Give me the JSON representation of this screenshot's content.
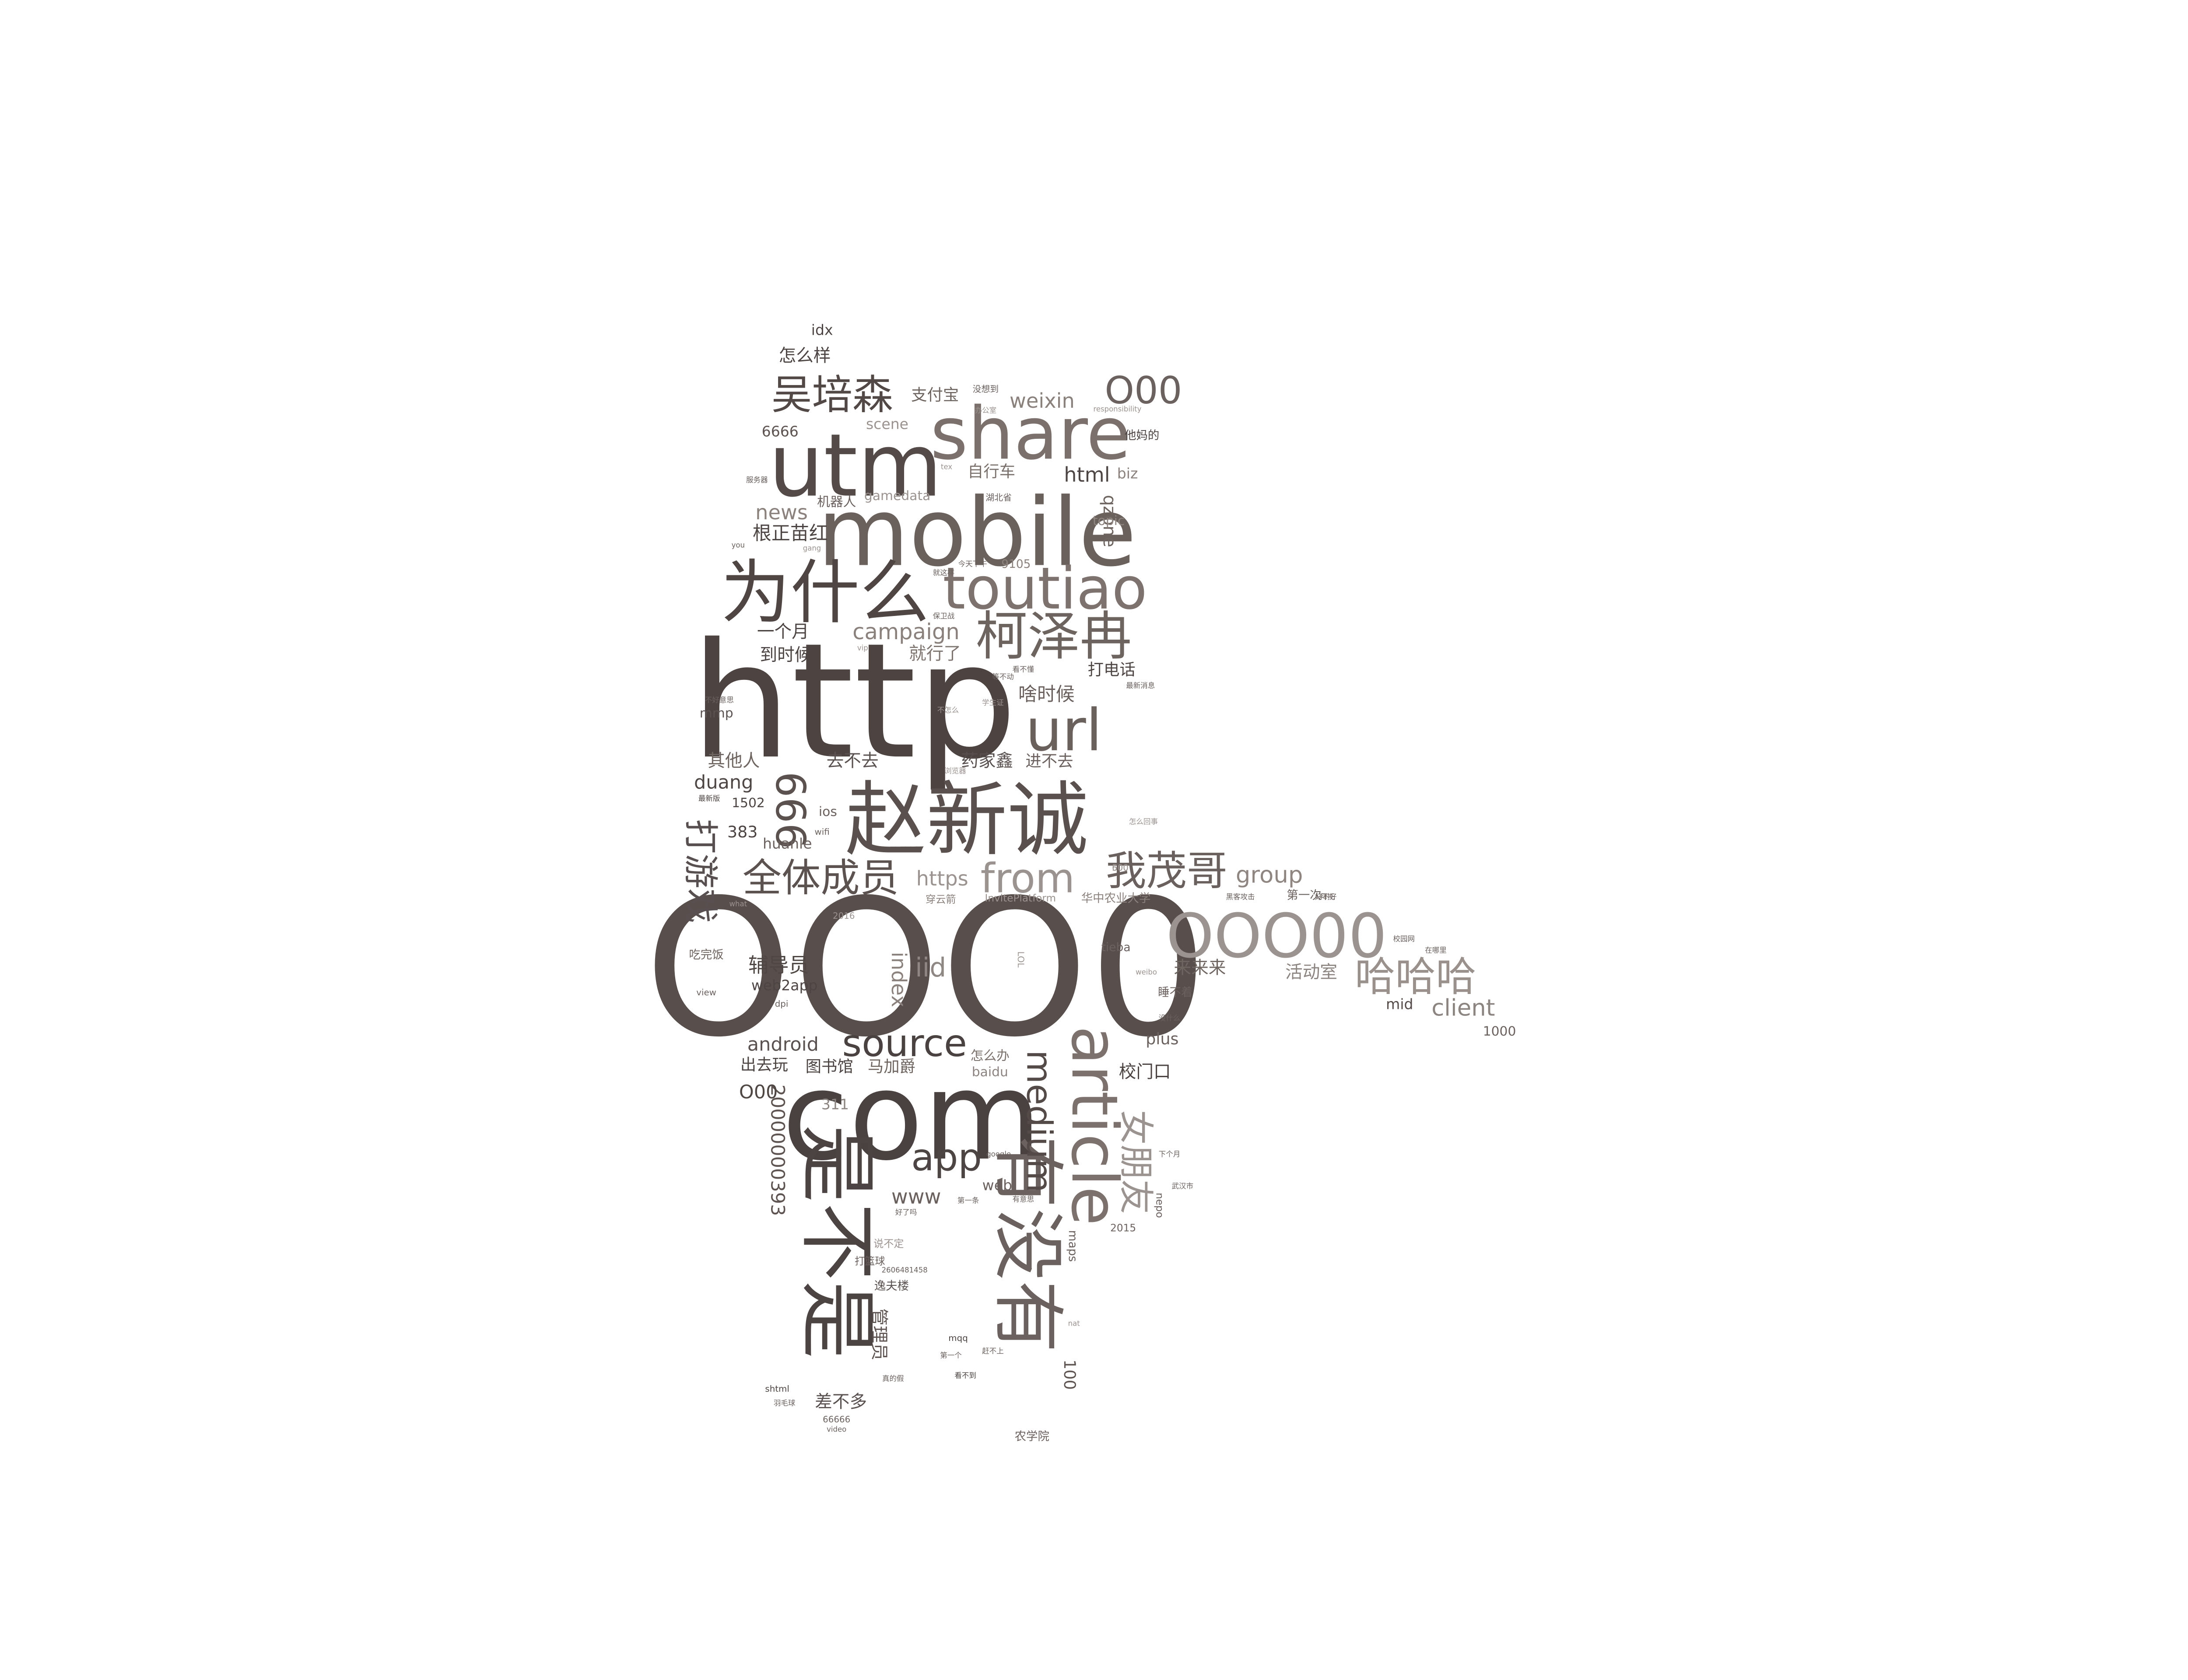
{
  "wordcloud": {
    "words": [
      {
        "text": "OOO0",
        "color": "#584f4d",
        "rotated": false
      },
      {
        "text": "http",
        "color": "#4d4442",
        "rotated": false
      },
      {
        "text": "com",
        "color": "#4a4240",
        "rotated": false
      },
      {
        "text": "mobile",
        "color": "#6a605c",
        "rotated": false
      },
      {
        "text": "utm",
        "color": "#544b49",
        "rotated": false
      },
      {
        "text": "share",
        "color": "#7b706b",
        "rotated": false
      },
      {
        "text": "赵新诚",
        "color": "#5a514e",
        "rotated": false
      },
      {
        "text": "为什么",
        "color": "#4f4644",
        "rotated": false
      },
      {
        "text": "toutiao",
        "color": "#7d726e",
        "rotated": false
      },
      {
        "text": "有没有",
        "color": "#6b615e",
        "rotated": true
      },
      {
        "text": "是不是",
        "color": "#4c4442",
        "rotated": true
      },
      {
        "text": "article",
        "color": "#7c716d",
        "rotated": true
      },
      {
        "text": "OOO00",
        "color": "#9b9390",
        "rotated": false
      },
      {
        "text": "柯泽冉",
        "color": "#6d635f",
        "rotated": false
      },
      {
        "text": "url",
        "color": "#6a605c",
        "rotated": false
      },
      {
        "text": "吴培森",
        "color": "#524946",
        "rotated": false
      },
      {
        "text": "666",
        "color": "#5b524f",
        "rotated": true
      },
      {
        "text": "我茂哥",
        "color": "#6a615e",
        "rotated": false
      },
      {
        "text": "全体成员",
        "color": "#5c5350",
        "rotated": false
      },
      {
        "text": "from",
        "color": "#9b9390",
        "rotated": false
      },
      {
        "text": "哈哈哈",
        "color": "#9a918d",
        "rotated": false
      },
      {
        "text": "source",
        "color": "#4a4240",
        "rotated": false
      },
      {
        "text": "app",
        "color": "#4d4543",
        "rotated": false
      },
      {
        "text": "medium",
        "color": "#544b49",
        "rotated": true
      },
      {
        "text": "女朋友",
        "color": "#9b9390",
        "rotated": true
      },
      {
        "text": "打游戏",
        "color": "#585050",
        "rotated": true
      },
      {
        "text": "O00",
        "color": "#6b625f",
        "rotated": false
      },
      {
        "text": "group",
        "color": "#8f8682",
        "rotated": false
      },
      {
        "text": "campaign",
        "color": "#8a817d",
        "rotated": false
      },
      {
        "text": "iid",
        "color": "#8f8783",
        "rotated": false
      },
      {
        "text": "client",
        "color": "#8c8480",
        "rotated": false
      },
      {
        "text": "辅导员",
        "color": "#4f4744",
        "rotated": false
      },
      {
        "text": "index",
        "color": "#8b827e",
        "rotated": true
      },
      {
        "text": "android",
        "color": "#5a5250",
        "rotated": false
      },
      {
        "text": "weixin",
        "color": "#8a817d",
        "rotated": false
      },
      {
        "text": "html",
        "color": "#4d4543",
        "rotated": false
      },
      {
        "text": "qzone",
        "color": "#6e6561",
        "rotated": true
      },
      {
        "text": "news",
        "color": "#8b827e",
        "rotated": false
      },
      {
        "text": "根正苗红",
        "color": "#4d4543",
        "rotated": false
      },
      {
        "text": "20000000393",
        "color": "#5e5552",
        "rotated": true
      },
      {
        "text": "huanle",
        "color": "#6b625f",
        "rotated": false
      },
      {
        "text": "https",
        "color": "#9b9390",
        "rotated": false
      },
      {
        "text": "www",
        "color": "#6a615e",
        "rotated": false
      },
      {
        "text": "duang",
        "color": "#4e4644",
        "rotated": false
      },
      {
        "text": "啥时候",
        "color": "#6a615e",
        "rotated": false
      },
      {
        "text": "去不去",
        "color": "#5a5250",
        "rotated": false
      },
      {
        "text": "药家鑫",
        "color": "#574f4d",
        "rotated": false
      },
      {
        "text": "进不去",
        "color": "#6b625f",
        "rotated": false
      },
      {
        "text": "其他人",
        "color": "#6e6561",
        "rotated": false
      },
      {
        "text": "就行了",
        "color": "#7e7470",
        "rotated": false
      },
      {
        "text": "打电话",
        "color": "#4c4442",
        "rotated": false
      },
      {
        "text": "一个月",
        "color": "#4d4543",
        "rotated": false
      },
      {
        "text": "到时候",
        "color": "#4c4442",
        "rotated": false
      },
      {
        "text": "怎么样",
        "color": "#4d4543",
        "rotated": false
      },
      {
        "text": "支付宝",
        "color": "#6e6561",
        "rotated": false
      },
      {
        "text": "自行车",
        "color": "#7a706c",
        "rotated": false
      },
      {
        "text": "机器人",
        "color": "#6b625f",
        "rotated": false
      },
      {
        "text": "gamedata",
        "color": "#9b9390",
        "rotated": false
      },
      {
        "text": "scene",
        "color": "#9b9390",
        "rotated": false
      },
      {
        "text": "6666",
        "color": "#5e5552",
        "rotated": false
      },
      {
        "text": "biz",
        "color": "#8b827e",
        "rotated": false
      },
      {
        "text": "topic",
        "color": "#8f8682",
        "rotated": false
      },
      {
        "text": "9105",
        "color": "#8b827e",
        "rotated": false
      },
      {
        "text": "idx",
        "color": "#4e4644",
        "rotated": false
      },
      {
        "text": "活动室",
        "color": "#8c8480",
        "rotated": false
      },
      {
        "text": "来来来",
        "color": "#6e6561",
        "rotated": false
      },
      {
        "text": "mid",
        "color": "#544b49",
        "rotated": false
      },
      {
        "text": "plus",
        "color": "#6b625f",
        "rotated": false
      },
      {
        "text": "校门口",
        "color": "#4c4442",
        "rotated": false
      },
      {
        "text": "图书馆",
        "color": "#4c4442",
        "rotated": false
      },
      {
        "text": "马加爵",
        "color": "#6e6561",
        "rotated": false
      },
      {
        "text": "出去玩",
        "color": "#4d4543",
        "rotated": false
      },
      {
        "text": "怎么办",
        "color": "#7a706c",
        "rotated": false
      },
      {
        "text": "baidu",
        "color": "#8c8480",
        "rotated": false
      },
      {
        "text": "O00",
        "color": "#4f4744",
        "rotated": false
      },
      {
        "text": "311",
        "color": "#8c8480",
        "rotated": false
      },
      {
        "text": "web",
        "color": "#6a615e",
        "rotated": false
      },
      {
        "text": "web2app",
        "color": "#4d4543",
        "rotated": false
      },
      {
        "text": "差不多",
        "color": "#5a5250",
        "rotated": false
      },
      {
        "text": "管理员",
        "color": "#5e5552",
        "rotated": true
      },
      {
        "text": "100",
        "color": "#5e5552",
        "rotated": true
      },
      {
        "text": "383",
        "color": "#4c4442",
        "rotated": false
      },
      {
        "text": "1502",
        "color": "#4d4543",
        "rotated": false
      },
      {
        "text": "ios",
        "color": "#6a615e",
        "rotated": false
      },
      {
        "text": "mmp",
        "color": "#5a5250",
        "rotated": false
      },
      {
        "text": "1000",
        "color": "#6a615e",
        "rotated": false
      },
      {
        "text": "tieba",
        "color": "#6b625f",
        "rotated": false
      },
      {
        "text": "睡不着",
        "color": "#6a615e",
        "rotated": false
      },
      {
        "text": "吃完饭",
        "color": "#6e6561",
        "rotated": false
      },
      {
        "text": "maps",
        "color": "#6a615e",
        "rotated": true
      },
      {
        "text": "2015",
        "color": "#6a615e",
        "rotated": false
      },
      {
        "text": "nepo",
        "color": "#6b625f",
        "rotated": true
      },
      {
        "text": "逸夫楼",
        "color": "#5a5250",
        "rotated": false
      },
      {
        "text": "打篮球",
        "color": "#6a615e",
        "rotated": false
      },
      {
        "text": "说不定",
        "color": "#9b9390",
        "rotated": false
      },
      {
        "text": "华中农业大学",
        "color": "#8b827e",
        "rotated": false
      },
      {
        "text": "InvitePlatform",
        "color": "#9b9390",
        "rotated": false
      },
      {
        "text": "穿云箭",
        "color": "#8b827e",
        "rotated": false
      },
      {
        "text": "第一次",
        "color": "#6a615e",
        "rotated": false
      },
      {
        "text": "LOL",
        "color": "#9b9390",
        "rotated": true
      },
      {
        "text": "wifi",
        "color": "#6a615e",
        "rotated": false
      },
      {
        "text": "view",
        "color": "#6a615e",
        "rotated": false
      },
      {
        "text": "dpi",
        "color": "#6a615e",
        "rotated": false
      },
      {
        "text": "2016",
        "color": "#9b9390",
        "rotated": false
      },
      {
        "text": "shtml",
        "color": "#4c4442",
        "rotated": false
      },
      {
        "text": "mqq",
        "color": "#4d4543",
        "rotated": false
      },
      {
        "text": "video",
        "color": "#6a615e",
        "rotated": false
      },
      {
        "text": "66666",
        "color": "#6a615e",
        "rotated": false
      },
      {
        "text": "农学院",
        "color": "#6a615e",
        "rotated": false
      },
      {
        "text": "他妈的",
        "color": "#4c4442",
        "rotated": false
      },
      {
        "text": "没想到",
        "color": "#6a615e",
        "rotated": false
      },
      {
        "text": "办公室",
        "color": "#9b9390",
        "rotated": false
      },
      {
        "text": "responsibility",
        "color": "#9b9390",
        "rotated": false
      },
      {
        "text": "湖北省",
        "color": "#6a615e",
        "rotated": false
      },
      {
        "text": "今天下午",
        "color": "#6a615e",
        "rotated": false
      },
      {
        "text": "保卫战",
        "color": "#6a615e",
        "rotated": false
      },
      {
        "text": "看不懂",
        "color": "#6a615e",
        "rotated": false
      },
      {
        "text": "最新消息",
        "color": "#6a615e",
        "rotated": false
      },
      {
        "text": "学生证",
        "color": "#9b9390",
        "rotated": false
      },
      {
        "text": "不怎么",
        "color": "#9b9390",
        "rotated": false
      },
      {
        "text": "浏览器",
        "color": "#9b9390",
        "rotated": false
      },
      {
        "text": "不好意思",
        "color": "#6a615e",
        "rotated": false
      },
      {
        "text": "最新版",
        "color": "#4c4442",
        "rotated": false
      },
      {
        "text": "what",
        "color": "#9b9390",
        "rotated": false
      },
      {
        "text": "服务器",
        "color": "#6a615e",
        "rotated": false
      },
      {
        "text": "you",
        "color": "#6a615e",
        "rotated": false
      },
      {
        "text": "google",
        "color": "#6a615e",
        "rotated": false
      },
      {
        "text": "武汉市",
        "color": "#6a615e",
        "rotated": false
      },
      {
        "text": "下个月",
        "color": "#6a615e",
        "rotated": false
      },
      {
        "text": "没什么",
        "color": "#6a615e",
        "rotated": false
      },
      {
        "text": "校园网",
        "color": "#6a615e",
        "rotated": false
      },
      {
        "text": "黑客攻击",
        "color": "#6a615e",
        "rotated": false
      },
      {
        "text": "怎么回事",
        "color": "#9b9390",
        "rotated": false
      },
      {
        "text": "好不好",
        "color": "#6a615e",
        "rotated": false
      },
      {
        "text": "第一条",
        "color": "#6a615e",
        "rotated": false
      },
      {
        "text": "好了吗",
        "color": "#6a615e",
        "rotated": false
      },
      {
        "text": "羽毛球",
        "color": "#6a615e",
        "rotated": false
      },
      {
        "text": "看不到",
        "color": "#4c4442",
        "rotated": false
      },
      {
        "text": "第一个",
        "color": "#6a615e",
        "rotated": false
      },
      {
        "text": "赶不上",
        "color": "#6a615e",
        "rotated": false
      },
      {
        "text": "真的假",
        "color": "#6a615e",
        "rotated": false
      },
      {
        "text": "等不动",
        "color": "#6a615e",
        "rotated": false
      },
      {
        "text": "拜托",
        "color": "#6a615e",
        "rotated": false
      },
      {
        "text": "就这样",
        "color": "#6a615e",
        "rotated": false
      },
      {
        "text": "在哪里",
        "color": "#6a615e",
        "rotated": false
      },
      {
        "text": "有意思",
        "color": "#6a615e",
        "rotated": false
      },
      {
        "text": "nat",
        "color": "#9b9390",
        "rotated": false
      },
      {
        "text": "vip",
        "color": "#9b9390",
        "rotated": false
      },
      {
        "text": "tex",
        "color": "#9b9390",
        "rotated": false
      },
      {
        "text": "weibo",
        "color": "#9b9390",
        "rotated": false
      },
      {
        "text": "gang",
        "color": "#9b9390",
        "rotated": false
      },
      {
        "text": "2606481458",
        "color": "#6a615e",
        "rotated": false
      },
      {
        "text": "500",
        "color": "#9b9390",
        "rotated": false
      },
      {
        "text": "600",
        "color": "#9b9390",
        "rotated": false
      }
    ]
  }
}
